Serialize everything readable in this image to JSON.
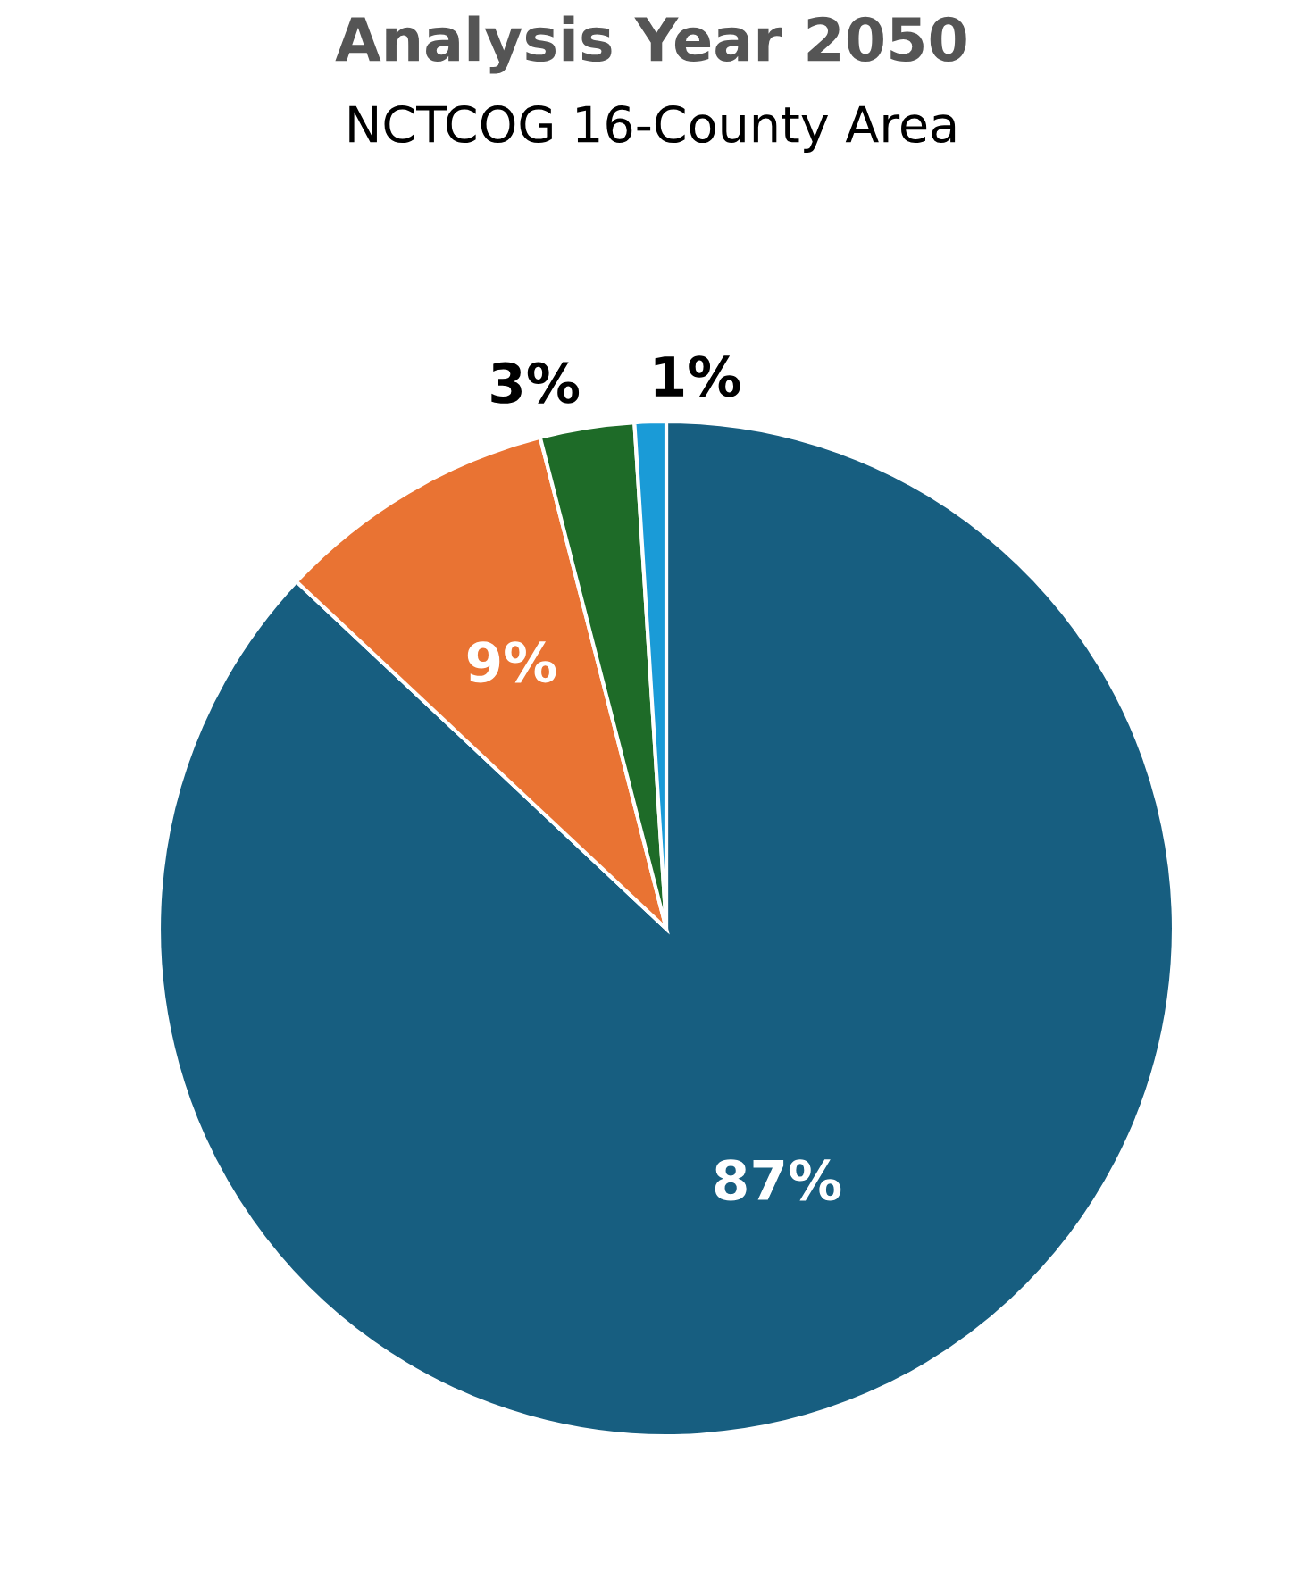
{
  "chart_data": {
    "type": "pie",
    "title": "Analysis Year 2050",
    "subtitle": "NCTCOG 16-County Area",
    "categories": [
      null,
      null,
      null,
      null
    ],
    "values": [
      87,
      9,
      3,
      1
    ],
    "colors": [
      "#175e80",
      "#e97333",
      "#1e6b28",
      "#1a9bd7"
    ],
    "value_labels": [
      "87%",
      "9%",
      "3%",
      "1%"
    ]
  }
}
